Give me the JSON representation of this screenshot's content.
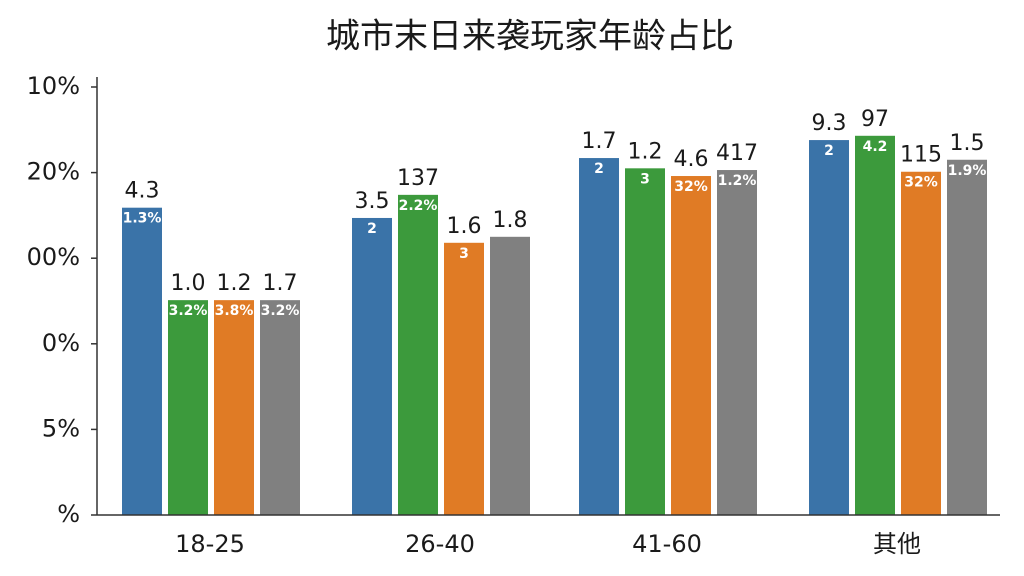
{
  "chart_data": {
    "type": "bar",
    "title": "城市末日来袭玩家年龄占比",
    "categories": [
      "18-25",
      "26-40",
      "41-60",
      "其他"
    ],
    "series": [
      {
        "color": "#3a73a8",
        "values": [
          3.59,
          3.47,
          4.17,
          4.38
        ],
        "top_labels": [
          "4.3",
          "3.5",
          "1.7",
          "9.3"
        ],
        "inner_labels": [
          "1.3%",
          "2",
          "2",
          "2"
        ]
      },
      {
        "color": "#3c9a3c",
        "values": [
          2.51,
          3.74,
          4.05,
          4.43
        ],
        "top_labels": [
          "1.0",
          "137",
          "1.2",
          "97"
        ],
        "inner_labels": [
          "3.2%",
          "2.2%",
          "3",
          "4.2"
        ]
      },
      {
        "color": "#e07b25",
        "values": [
          2.51,
          3.18,
          3.96,
          4.01
        ],
        "top_labels": [
          "1.2",
          "1.6",
          "4.6",
          "115"
        ],
        "inner_labels": [
          "3.8%",
          "3",
          "32%",
          "32%"
        ]
      },
      {
        "color": "#808080",
        "values": [
          2.51,
          3.25,
          4.03,
          4.15
        ],
        "top_labels": [
          "1.7",
          "1.8",
          "417",
          "1.5"
        ],
        "inner_labels": [
          "3.2%",
          null,
          "1.2%",
          "1.9%"
        ]
      }
    ],
    "ylim": [
      0,
      5
    ],
    "yticks": [
      {
        "value": 0,
        "label": "%"
      },
      {
        "value": 1,
        "label": "5%"
      },
      {
        "value": 2,
        "label": "0%"
      },
      {
        "value": 3,
        "label": "00%"
      },
      {
        "value": 4,
        "label": "20%"
      },
      {
        "value": 5,
        "label": "10%"
      }
    ]
  }
}
